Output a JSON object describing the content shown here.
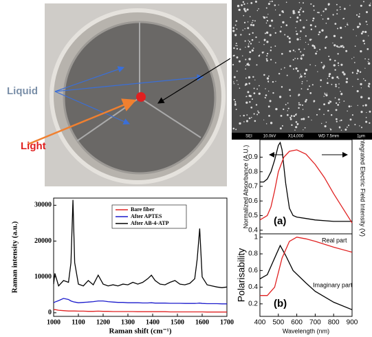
{
  "photo": {
    "labels": [
      "Liquid",
      "Light"
    ]
  },
  "sem": {
    "caption": [
      "SEI",
      "10.0kV",
      "X14,000",
      "WD 7.5mm",
      "1μm"
    ]
  },
  "chart_data": [
    {
      "type": "line",
      "xlabel": "Raman shift (cm⁻¹)",
      "ylabel": "Raman intensity (a.u.)",
      "x": [
        1000,
        1005,
        1020,
        1040,
        1060,
        1070,
        1078,
        1085,
        1100,
        1120,
        1140,
        1160,
        1180,
        1200,
        1220,
        1240,
        1260,
        1280,
        1300,
        1320,
        1340,
        1360,
        1380,
        1395,
        1410,
        1430,
        1450,
        1470,
        1490,
        1510,
        1530,
        1550,
        1570,
        1580,
        1590,
        1600,
        1620,
        1640,
        1660,
        1680,
        1700
      ],
      "xlim": [
        1000,
        1700
      ],
      "xticks": [
        1000,
        1100,
        1200,
        1300,
        1400,
        1500,
        1600,
        1700
      ],
      "ylim": [
        -1000,
        32000
      ],
      "yticks": [
        0,
        10000,
        20000,
        30000
      ],
      "legend": "top-right",
      "series": [
        {
          "name": "Bare fiber",
          "color": "#e02020",
          "values": [
            800,
            900,
            700,
            600,
            500,
            500,
            500,
            500,
            450,
            450,
            400,
            400,
            450,
            400,
            400,
            350,
            350,
            350,
            350,
            350,
            300,
            300,
            300,
            300,
            300,
            300,
            300,
            250,
            250,
            250,
            250,
            250,
            250,
            250,
            250,
            250,
            200,
            200,
            200,
            200,
            200
          ]
        },
        {
          "name": "After APTES",
          "color": "#1a1acc",
          "values": [
            2800,
            3000,
            3400,
            4000,
            3700,
            3300,
            3100,
            3000,
            2800,
            2900,
            3000,
            3100,
            3300,
            3300,
            3100,
            3000,
            2900,
            2900,
            2800,
            2800,
            2800,
            2750,
            2750,
            2800,
            2700,
            2700,
            2700,
            2650,
            2650,
            2650,
            2600,
            2600,
            2600,
            2650,
            2700,
            2600,
            2550,
            2550,
            2550,
            2500,
            2500
          ]
        },
        {
          "name": "After AB-4-ATP",
          "color": "#000000",
          "values": [
            8000,
            11000,
            7500,
            9000,
            8500,
            14000,
            31500,
            14000,
            8000,
            7500,
            9000,
            7800,
            10500,
            8000,
            7500,
            7800,
            7500,
            8000,
            7800,
            8500,
            8000,
            8500,
            9500,
            10500,
            9000,
            8000,
            7800,
            8500,
            9000,
            8000,
            7800,
            8200,
            9500,
            15000,
            23500,
            10000,
            7800,
            7500,
            7200,
            7000,
            7200
          ]
        }
      ]
    },
    {
      "type": "line",
      "panel_label": "(a)",
      "ylabel": "Normalized Absorbance (A.U.)",
      "y2label": "Integrated Electric Field Intensity (V)",
      "xlim": [
        400,
        900
      ],
      "ylim": [
        0.375,
        1.02
      ],
      "yticks": [
        0.4,
        0.5,
        0.6,
        0.7,
        0.8,
        0.9
      ],
      "series": [
        {
          "color": "#000000",
          "x": [
            400,
            420,
            440,
            460,
            480,
            500,
            510,
            520,
            540,
            560,
            580,
            600,
            650,
            700,
            800,
            900
          ],
          "values": [
            0.73,
            0.73,
            0.75,
            0.8,
            0.88,
            0.98,
            1.0,
            0.95,
            0.72,
            0.55,
            0.5,
            0.49,
            0.48,
            0.47,
            0.46,
            0.46
          ]
        },
        {
          "color": "#e02020",
          "x": [
            400,
            440,
            460,
            480,
            500,
            530,
            560,
            600,
            650,
            700,
            750,
            800,
            850,
            900
          ],
          "values": [
            0.47,
            0.5,
            0.56,
            0.67,
            0.8,
            0.9,
            0.94,
            0.95,
            0.92,
            0.85,
            0.76,
            0.65,
            0.55,
            0.45
          ]
        }
      ]
    },
    {
      "type": "line",
      "panel_label": "(b)",
      "xlabel": "Wavelength (nm)",
      "ylabel": "Polarisability",
      "annotations": [
        "Real part",
        "Imaginary part"
      ],
      "xlim": [
        400,
        900
      ],
      "xticks": [
        400,
        500,
        600,
        700,
        800,
        900
      ],
      "ylim": [
        0.05,
        1.04
      ],
      "yticks": [
        0.2,
        0.4,
        0.6,
        0.8,
        1.0
      ],
      "series": [
        {
          "color": "#000000",
          "x": [
            400,
            440,
            480,
            510,
            540,
            580,
            650,
            700,
            800,
            900
          ],
          "values": [
            0.5,
            0.55,
            0.75,
            0.9,
            0.78,
            0.6,
            0.45,
            0.35,
            0.22,
            0.13
          ]
        },
        {
          "color": "#e02020",
          "x": [
            400,
            440,
            480,
            520,
            560,
            600,
            650,
            700,
            800,
            900
          ],
          "values": [
            0.3,
            0.3,
            0.4,
            0.75,
            0.95,
            1.0,
            0.98,
            0.95,
            0.88,
            0.82
          ]
        }
      ]
    }
  ]
}
